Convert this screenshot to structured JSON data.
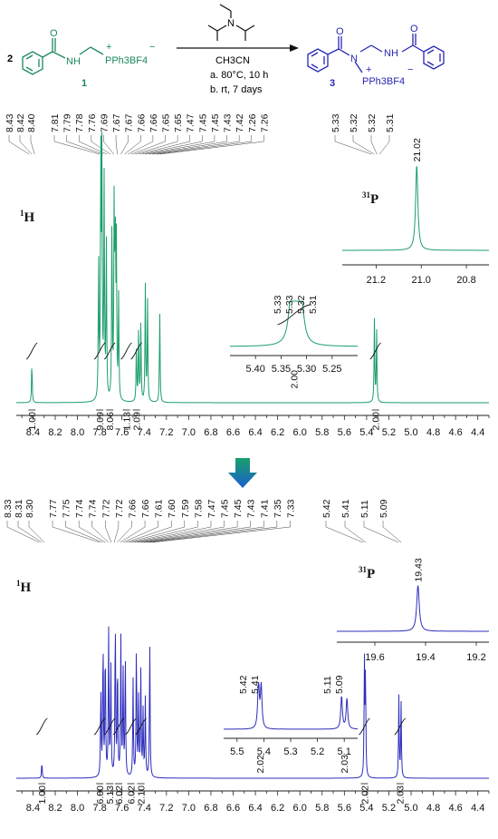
{
  "scheme": {
    "stoich": "2",
    "reactant_label": "1",
    "reactant_nh": "NH",
    "reactant_o": "O",
    "reactant_p": "PPh3BF4",
    "product_label": "3",
    "product_n": "N",
    "product_nh": "NH",
    "product_o1": "O",
    "product_o2": "O",
    "product_p": "PPh3BF4",
    "reagent_n": "N",
    "solvent": "CH3CN",
    "cond_a": "a. 80°C, 10 h",
    "cond_b": "b. rt, 7 days",
    "colors": {
      "reactant": "#1a8a5c",
      "product": "#2626b3",
      "arrow_down": "#1a7fd0"
    }
  },
  "chart_data": [
    {
      "type": "line",
      "nucleus": "1H",
      "nucleus_label_sup": "1",
      "nucleus_label": "H",
      "color": "#1a9e6a",
      "xlim": [
        8.55,
        4.3
      ],
      "x_reversed": true,
      "xticks": [
        "8.4",
        "8.2",
        "8.0",
        "7.8",
        "7.6",
        "7.4",
        "7.2",
        "7.0",
        "6.8",
        "6.6",
        "6.4",
        "6.2",
        "6.0",
        "5.8",
        "5.6",
        "5.4",
        "5.2",
        "5.0",
        "4.8",
        "4.6",
        "4.4"
      ],
      "peaks": [
        {
          "ppm": 8.41,
          "height": 0.16
        },
        {
          "ppm": 7.81,
          "height": 0.55
        },
        {
          "ppm": 7.79,
          "height": 0.99
        },
        {
          "ppm": 7.78,
          "height": 0.92
        },
        {
          "ppm": 7.76,
          "height": 0.85
        },
        {
          "ppm": 7.74,
          "height": 0.6
        },
        {
          "ppm": 7.69,
          "height": 0.7
        },
        {
          "ppm": 7.67,
          "height": 0.76
        },
        {
          "ppm": 7.66,
          "height": 0.66
        },
        {
          "ppm": 7.65,
          "height": 0.58
        },
        {
          "ppm": 7.63,
          "height": 0.4
        },
        {
          "ppm": 7.47,
          "height": 0.22
        },
        {
          "ppm": 7.45,
          "height": 0.28
        },
        {
          "ppm": 7.43,
          "height": 0.3
        },
        {
          "ppm": 7.39,
          "height": 0.45
        },
        {
          "ppm": 7.37,
          "height": 0.4
        },
        {
          "ppm": 7.26,
          "height": 0.35
        },
        {
          "ppm": 5.33,
          "height": 0.32
        },
        {
          "ppm": 5.31,
          "height": 0.28
        }
      ],
      "peak_labels_left": [
        "8.43",
        "8.42",
        "8.40",
        "7.81",
        "7.79",
        "7.78",
        "7.76",
        "7.69",
        "7.67",
        "7.67",
        "7.66",
        "7.66",
        "7.65",
        "7.65",
        "7.47",
        "7.45",
        "7.45",
        "7.43",
        "7.42",
        "7.26",
        "7.26"
      ],
      "peak_labels_right": [
        "5.33",
        "5.32",
        "5.32",
        "5.31"
      ],
      "integrals": [
        {
          "ppm": 8.41,
          "value": "1.00"
        },
        {
          "ppm": 7.8,
          "value": "9.09"
        },
        {
          "ppm": 7.71,
          "value": "8.06"
        },
        {
          "ppm": 7.56,
          "value": "1.13"
        },
        {
          "ppm": 7.47,
          "value": "2.09"
        },
        {
          "ppm": 5.32,
          "value": "2.00"
        }
      ],
      "inset_main": {
        "xlim": [
          5.45,
          5.2
        ],
        "xticks": [
          "5.40",
          "5.35",
          "5.30",
          "5.25"
        ],
        "peak_labels": [
          "5.33",
          "5.33",
          "5.32",
          "5.31"
        ],
        "integral": "2.00"
      },
      "inset_p": {
        "nucleus_sup": "31",
        "nucleus": "P",
        "peak_label": "21.02",
        "peak_ppm": 21.02,
        "xlim": [
          21.35,
          20.7
        ],
        "xticks": [
          "21.2",
          "21.0",
          "20.8"
        ]
      }
    },
    {
      "type": "line",
      "nucleus": "1H",
      "nucleus_label_sup": "1",
      "nucleus_label": "H",
      "color": "#2d2dbd",
      "xlim": [
        8.55,
        4.3
      ],
      "x_reversed": true,
      "xticks": [
        "8.4",
        "8.2",
        "8.0",
        "7.8",
        "7.6",
        "7.4",
        "7.2",
        "7.0",
        "6.8",
        "6.6",
        "6.4",
        "6.2",
        "6.0",
        "5.8",
        "5.6",
        "5.4",
        "5.2",
        "5.0",
        "4.8",
        "4.6",
        "4.4"
      ],
      "peaks": [
        {
          "ppm": 8.32,
          "height": 0.1
        },
        {
          "ppm": 7.79,
          "height": 0.55
        },
        {
          "ppm": 7.77,
          "height": 0.86
        },
        {
          "ppm": 7.75,
          "height": 0.82
        },
        {
          "ppm": 7.72,
          "height": 0.9
        },
        {
          "ppm": 7.7,
          "height": 0.7
        },
        {
          "ppm": 7.66,
          "height": 1.0
        },
        {
          "ppm": 7.64,
          "height": 0.72
        },
        {
          "ppm": 7.61,
          "height": 0.85
        },
        {
          "ppm": 7.59,
          "height": 0.66
        },
        {
          "ppm": 7.57,
          "height": 0.75
        },
        {
          "ppm": 7.5,
          "height": 0.6
        },
        {
          "ppm": 7.47,
          "height": 0.82
        },
        {
          "ppm": 7.45,
          "height": 0.5
        },
        {
          "ppm": 7.43,
          "height": 0.65
        },
        {
          "ppm": 7.41,
          "height": 0.4
        },
        {
          "ppm": 7.39,
          "height": 0.48
        },
        {
          "ppm": 7.35,
          "height": 0.85
        },
        {
          "ppm": 5.42,
          "height": 0.7
        },
        {
          "ppm": 5.41,
          "height": 0.65
        },
        {
          "ppm": 5.11,
          "height": 0.5
        },
        {
          "ppm": 5.09,
          "height": 0.46
        }
      ],
      "peak_labels_left": [
        "8.33",
        "8.31",
        "8.30",
        "7.77",
        "7.75",
        "7.74",
        "7.74",
        "7.72",
        "7.72",
        "7.66",
        "7.66",
        "7.61",
        "7.60",
        "7.59",
        "7.58",
        "7.47",
        "7.45",
        "7.45",
        "7.43",
        "7.41",
        "7.35",
        "7.33"
      ],
      "peak_labels_right": [
        "5.42",
        "5.41",
        "5.11",
        "5.09"
      ],
      "integrals": [
        {
          "ppm": 8.32,
          "value": "1.00"
        },
        {
          "ppm": 7.8,
          "value": "6.00"
        },
        {
          "ppm": 7.71,
          "value": "5.13"
        },
        {
          "ppm": 7.63,
          "value": "6.02"
        },
        {
          "ppm": 7.52,
          "value": "6.02"
        },
        {
          "ppm": 7.43,
          "value": "2.10"
        },
        {
          "ppm": 5.42,
          "value": "2.02"
        },
        {
          "ppm": 5.1,
          "value": "2.03"
        }
      ],
      "inset_main": {
        "xlim": [
          5.55,
          5.05
        ],
        "xticks": [
          "5.5",
          "5.4",
          "5.3",
          "5.2",
          "5.1"
        ],
        "peak_labels_a": [
          "5.42",
          "5.41"
        ],
        "peak_labels_b": [
          "5.11",
          "5.09"
        ],
        "integral_a": "2.02",
        "integral_b": "2.03"
      },
      "inset_p": {
        "nucleus_sup": "31",
        "nucleus": "P",
        "peak_label": "19.43",
        "peak_ppm": 19.43,
        "xlim": [
          19.75,
          19.15
        ],
        "xticks": [
          "19.6",
          "19.4",
          "19.2"
        ]
      }
    }
  ]
}
